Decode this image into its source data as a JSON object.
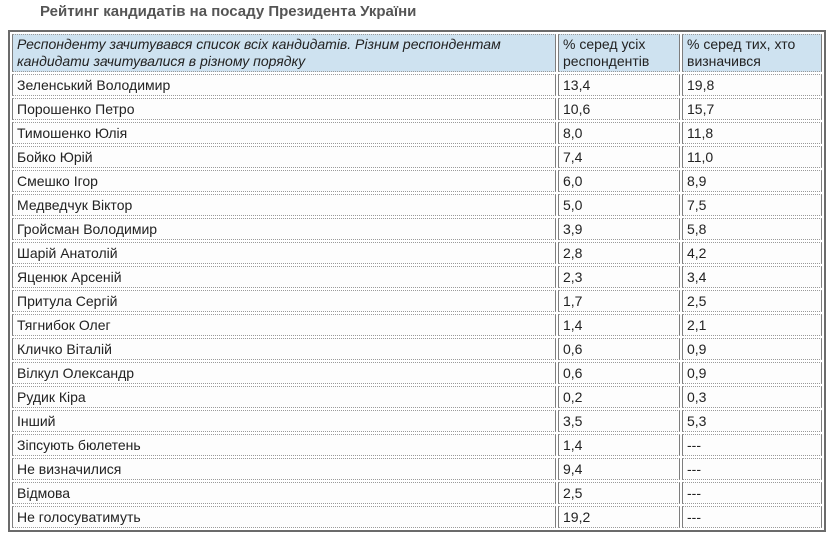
{
  "chart_data": {
    "type": "table",
    "title": "Рейтинг кандидатів на посаду Президента України",
    "note": "Респонденту зачитувався список всіх кандидатів. Різним респондентам кандидати зачитувалися в різному порядку",
    "columns": [
      "% серед усіх респондентів",
      "% серед тих, хто визначився"
    ],
    "rows": [
      {
        "name": "Зеленський Володимир",
        "pct_all": "13,4",
        "pct_decided": "19,8"
      },
      {
        "name": "Порошенко Петро",
        "pct_all": "10,6",
        "pct_decided": "15,7"
      },
      {
        "name": "Тимошенко Юлія",
        "pct_all": "8,0",
        "pct_decided": "11,8"
      },
      {
        "name": "Бойко Юрій",
        "pct_all": "7,4",
        "pct_decided": "11,0"
      },
      {
        "name": "Смешко Ігор",
        "pct_all": "6,0",
        "pct_decided": "8,9"
      },
      {
        "name": "Медведчук Віктор",
        "pct_all": "5,0",
        "pct_decided": "7,5"
      },
      {
        "name": "Гройсман Володимир",
        "pct_all": "3,9",
        "pct_decided": "5,8"
      },
      {
        "name": "Шарій Анатолій",
        "pct_all": "2,8",
        "pct_decided": "4,2"
      },
      {
        "name": "Яценюк Арсеній",
        "pct_all": "2,3",
        "pct_decided": "3,4"
      },
      {
        "name": "Притула Сергій",
        "pct_all": "1,7",
        "pct_decided": "2,5"
      },
      {
        "name": "Тягнибок Олег",
        "pct_all": "1,4",
        "pct_decided": "2,1"
      },
      {
        "name": "Кличко Віталій",
        "pct_all": "0,6",
        "pct_decided": "0,9"
      },
      {
        "name": "Вілкул Олександр",
        "pct_all": "0,6",
        "pct_decided": "0,9"
      },
      {
        "name": "Рудик Кіра",
        "pct_all": "0,2",
        "pct_decided": "0,3"
      },
      {
        "name": "Інший",
        "pct_all": "3,5",
        "pct_decided": "5,3"
      },
      {
        "name": "Зіпсують бюлетень",
        "pct_all": "1,4",
        "pct_decided": "---"
      },
      {
        "name": "Не визначилися",
        "pct_all": "9,4",
        "pct_decided": "---"
      },
      {
        "name": "Відмова",
        "pct_all": "2,5",
        "pct_decided": "---"
      },
      {
        "name": "Не голосуватимуть",
        "pct_all": "19,2",
        "pct_decided": "---"
      }
    ]
  },
  "colors": {
    "header_bg": "#cee2f0",
    "outer_border": "#6b6b6b",
    "cell_border_solid": "#7d7d7d",
    "cell_border_dotted": "#9a9a9a",
    "title_text": "#555555",
    "cell_text": "#222222"
  }
}
